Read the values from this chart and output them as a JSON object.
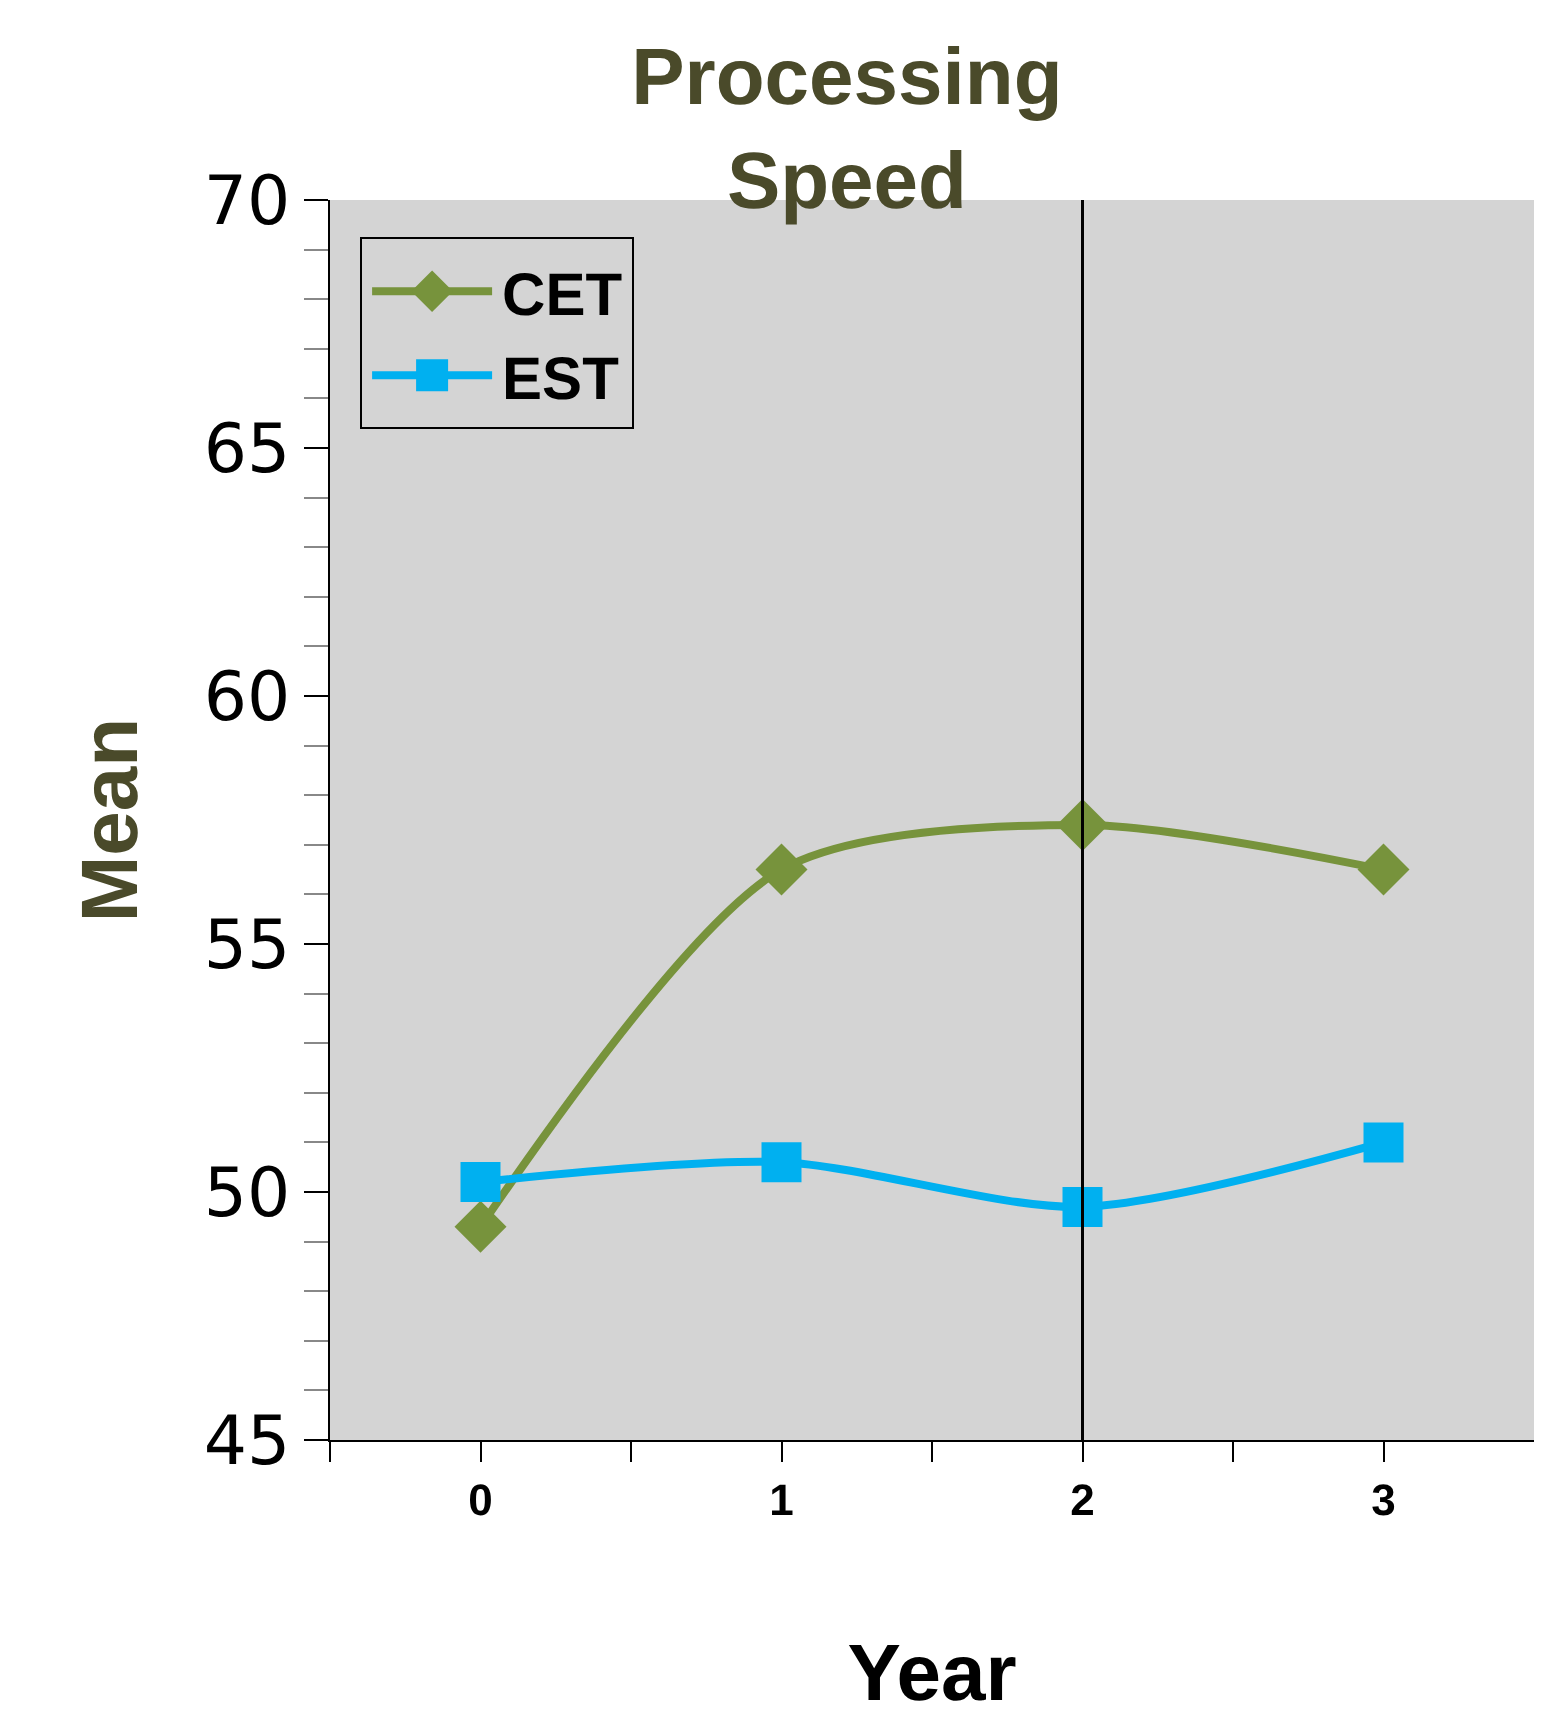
{
  "chart_data": {
    "type": "line",
    "title": "Processing Speed",
    "xlabel": "Year",
    "ylabel": "Mean",
    "x": [
      0,
      1,
      2,
      3
    ],
    "series": [
      {
        "name": "CET",
        "color": "#77933c",
        "marker": "diamond",
        "values": [
          49.3,
          56.5,
          57.4,
          56.5
        ]
      },
      {
        "name": "EST",
        "color": "#00b0f0",
        "marker": "square",
        "values": [
          50.2,
          50.6,
          49.7,
          51.0
        ]
      }
    ],
    "xlim": [
      -0.5,
      3.5
    ],
    "xticks": [
      {
        "value": -0.5,
        "label": null
      },
      0,
      {
        "value": 0.5,
        "label": null
      },
      1,
      {
        "value": 1.5,
        "label": null
      },
      2,
      {
        "value": 2.5,
        "label": null
      },
      3
    ],
    "ylim": [
      45,
      70
    ],
    "yticks": [
      45,
      50,
      55,
      60,
      65,
      70
    ],
    "ref_lines": [
      {
        "axis": "x",
        "value": 2,
        "color": "#000000"
      }
    ],
    "grid": false,
    "legend": "top left",
    "line_style": "solid"
  }
}
